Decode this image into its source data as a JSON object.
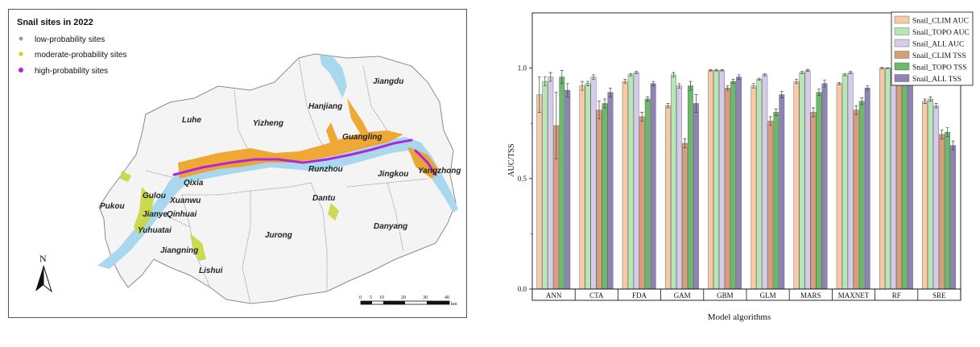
{
  "map": {
    "legend_title": "Snail sites in 2022",
    "legend_items": [
      {
        "label": "low-probability sites",
        "color": "#9e9e9e"
      },
      {
        "label": "moderate-probability sites",
        "color": "#e6c400"
      },
      {
        "label": "high-probability sites",
        "color": "#b026d8"
      }
    ],
    "place_names": [
      "Jiangdu",
      "Hanjiang",
      "Luhe",
      "Yizheng",
      "Guangling",
      "Runzhou",
      "Jingkou",
      "Yangzhong",
      "Qixia",
      "Gulou",
      "Xuanwu",
      "Pukou",
      "Jianye",
      "Qinhuai",
      "Yuhuatai",
      "Dantu",
      "Danyang",
      "Jurong",
      "Jiangning",
      "Lishui"
    ],
    "north_label": "N",
    "scale_labels": [
      "0",
      "5",
      "10",
      "20",
      "30",
      "40"
    ],
    "scale_unit": "km",
    "colors": {
      "river": "#a9d7ee",
      "district_fill": "#f4f4f4",
      "border": "#8a8a8a",
      "orange": "#f0a020",
      "yellow_green": "#c8d840",
      "magenta": "#b026d8"
    }
  },
  "chart_data": {
    "type": "bar",
    "categories": [
      "ANN",
      "CTA",
      "FDA",
      "GAM",
      "GBM",
      "GLM",
      "MARS",
      "MAXNET",
      "RF",
      "SRE"
    ],
    "xlabel": "Model algorithms",
    "ylabel": "AUC/TSS",
    "ylim": [
      0,
      1.25
    ],
    "yticks": [
      0.0,
      0.5,
      1.0
    ],
    "ytick_labels": [
      "0.0",
      "0.5",
      "1.0"
    ],
    "legend_position": "top-right",
    "series": [
      {
        "name": "Snail_CLIM AUC",
        "color": "#f7c9a4",
        "values": [
          0.88,
          0.92,
          0.94,
          0.83,
          0.99,
          0.92,
          0.94,
          0.93,
          1.0,
          0.85
        ],
        "errors": [
          0.08,
          0.02,
          0.01,
          0.01,
          0.003,
          0.01,
          0.01,
          0.005,
          0.003,
          0.01
        ]
      },
      {
        "name": "Snail_TOPO AUC",
        "color": "#b6e6b6",
        "values": [
          0.94,
          0.93,
          0.97,
          0.97,
          0.99,
          0.95,
          0.98,
          0.97,
          1.0,
          0.86
        ],
        "errors": [
          0.02,
          0.01,
          0.005,
          0.01,
          0.003,
          0.005,
          0.005,
          0.005,
          0.002,
          0.01
        ]
      },
      {
        "name": "Snail_ALL  AUC",
        "color": "#d6cbeb",
        "values": [
          0.96,
          0.96,
          0.98,
          0.92,
          0.99,
          0.97,
          0.99,
          0.98,
          1.0,
          0.83
        ],
        "errors": [
          0.02,
          0.01,
          0.005,
          0.01,
          0.003,
          0.005,
          0.005,
          0.005,
          0.002,
          0.01
        ]
      },
      {
        "name": "Snail_CLIM TSS",
        "color": "#d69f79",
        "values": [
          0.74,
          0.81,
          0.78,
          0.66,
          0.91,
          0.76,
          0.8,
          0.81,
          0.98,
          0.7
        ],
        "errors": [
          0.15,
          0.04,
          0.02,
          0.02,
          0.01,
          0.02,
          0.02,
          0.02,
          0.005,
          0.02
        ]
      },
      {
        "name": "Snail_TOPO TSS",
        "color": "#6cb86c",
        "values": [
          0.96,
          0.84,
          0.86,
          0.92,
          0.94,
          0.8,
          0.89,
          0.85,
          0.97,
          0.71
        ],
        "errors": [
          0.03,
          0.02,
          0.01,
          0.02,
          0.01,
          0.015,
          0.015,
          0.015,
          0.005,
          0.02
        ]
      },
      {
        "name": "Snail_ALL  TSS",
        "color": "#8f82b5",
        "values": [
          0.9,
          0.89,
          0.93,
          0.84,
          0.96,
          0.88,
          0.93,
          0.91,
          0.99,
          0.65
        ],
        "errors": [
          0.03,
          0.02,
          0.01,
          0.04,
          0.01,
          0.015,
          0.015,
          0.01,
          0.005,
          0.02
        ]
      }
    ]
  }
}
